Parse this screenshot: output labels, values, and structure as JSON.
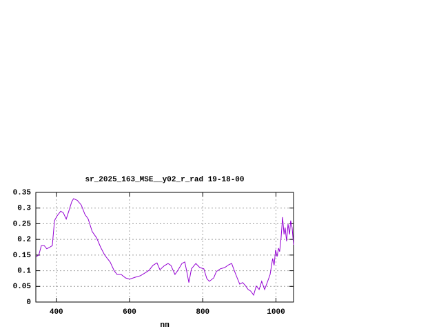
{
  "chart_data": {
    "type": "line",
    "title": "sr_2025_163_MSE__y02_r_rad 19-18-00",
    "x_label": "nm",
    "xlim": [
      344,
      1048
    ],
    "xticks": [
      400,
      600,
      800,
      1000
    ],
    "ylim": [
      0,
      0.35
    ],
    "yticks": [
      0,
      0.05,
      0.1,
      0.15,
      0.2,
      0.25,
      0.3,
      0.35
    ],
    "grid": true,
    "series": [
      {
        "color": "#9400d3",
        "x": [
          345,
          352,
          359,
          367,
          374,
          382,
          389,
          395,
          402,
          412,
          419,
          427,
          434,
          442,
          447,
          457,
          468,
          478,
          487,
          498,
          510,
          521,
          532,
          547,
          558,
          566,
          577,
          589,
          600,
          615,
          630,
          641,
          653,
          664,
          675,
          683,
          694,
          705,
          713,
          724,
          732,
          743,
          751,
          756,
          762,
          769,
          781,
          792,
          803,
          811,
          818,
          830,
          837,
          848,
          860,
          871,
          879,
          886,
          894,
          901,
          909,
          916,
          924,
          931,
          939,
          946,
          954,
          961,
          969,
          976,
          984,
          991,
          995,
          999,
          1003,
          1007,
          1010,
          1014,
          1018,
          1022,
          1025,
          1029,
          1033,
          1037,
          1040,
          1044,
          1048
        ],
        "values": [
          0.145,
          0.15,
          0.18,
          0.18,
          0.17,
          0.175,
          0.18,
          0.26,
          0.275,
          0.29,
          0.285,
          0.265,
          0.29,
          0.32,
          0.33,
          0.325,
          0.31,
          0.28,
          0.265,
          0.225,
          0.205,
          0.175,
          0.15,
          0.128,
          0.1,
          0.088,
          0.088,
          0.077,
          0.073,
          0.079,
          0.084,
          0.092,
          0.101,
          0.117,
          0.125,
          0.103,
          0.115,
          0.123,
          0.117,
          0.088,
          0.101,
          0.123,
          0.128,
          0.099,
          0.062,
          0.106,
          0.123,
          0.11,
          0.106,
          0.075,
          0.066,
          0.077,
          0.097,
          0.106,
          0.11,
          0.119,
          0.123,
          0.101,
          0.077,
          0.057,
          0.062,
          0.053,
          0.04,
          0.035,
          0.022,
          0.051,
          0.04,
          0.066,
          0.04,
          0.062,
          0.088,
          0.139,
          0.117,
          0.167,
          0.145,
          0.172,
          0.161,
          0.205,
          0.271,
          0.216,
          0.238,
          0.194,
          0.249,
          0.216,
          0.26,
          0.238,
          0.183
        ]
      }
    ]
  }
}
